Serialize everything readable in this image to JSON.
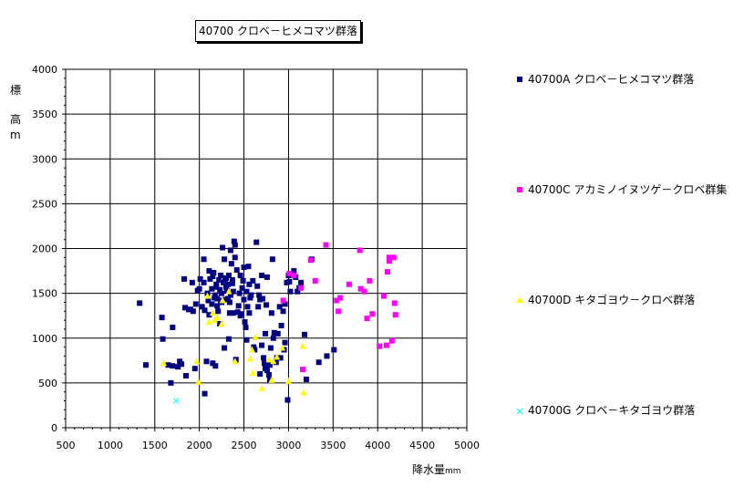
{
  "chart_data": {
    "type": "scatter",
    "title": "40700 クロベ－ヒメコマツ群落",
    "xlabel": "降水量",
    "xlabel_unit": "mm",
    "ylabel_chars": [
      "標",
      "高",
      "m"
    ],
    "xlim": [
      500,
      5000
    ],
    "ylim": [
      0,
      4000
    ],
    "xticks": [
      500,
      1000,
      1500,
      2000,
      2500,
      3000,
      3500,
      4000,
      4500,
      5000
    ],
    "yticks": [
      0,
      500,
      1000,
      1500,
      2000,
      2500,
      3000,
      3500,
      4000
    ],
    "grid": true,
    "legend_position": "right",
    "series": [
      {
        "name": "40700A クロベ－ヒメコマツ群落",
        "color": "#000080",
        "marker": "square",
        "points": [
          [
            1330,
            1390
          ],
          [
            1400,
            700
          ],
          [
            1580,
            1230
          ],
          [
            1590,
            990
          ],
          [
            1650,
            700
          ],
          [
            1680,
            500
          ],
          [
            1700,
            1120
          ],
          [
            1700,
            690
          ],
          [
            1760,
            680
          ],
          [
            1780,
            740
          ],
          [
            1800,
            710
          ],
          [
            1830,
            1660
          ],
          [
            1840,
            1340
          ],
          [
            1850,
            580
          ],
          [
            1880,
            1320
          ],
          [
            1900,
            1320
          ],
          [
            1920,
            1620
          ],
          [
            1930,
            1300
          ],
          [
            1950,
            660
          ],
          [
            1960,
            1380
          ],
          [
            1980,
            1530
          ],
          [
            2000,
            1550
          ],
          [
            2010,
            1660
          ],
          [
            2030,
            1350
          ],
          [
            2050,
            1620
          ],
          [
            2050,
            1880
          ],
          [
            2060,
            1310
          ],
          [
            2060,
            380
          ],
          [
            2080,
            740
          ],
          [
            2090,
            1500
          ],
          [
            2100,
            1420
          ],
          [
            2110,
            1750
          ],
          [
            2120,
            1660
          ],
          [
            2140,
            1550
          ],
          [
            2150,
            1690
          ],
          [
            2160,
            1730
          ],
          [
            2170,
            1450
          ],
          [
            2180,
            1480
          ],
          [
            2190,
            1600
          ],
          [
            2200,
            1440
          ],
          [
            2200,
            1360
          ],
          [
            2210,
            1300
          ],
          [
            2220,
            1650
          ],
          [
            2230,
            1540
          ],
          [
            2240,
            1700
          ],
          [
            2250,
            1500
          ],
          [
            2260,
            2010
          ],
          [
            2270,
            1620
          ],
          [
            2280,
            1880
          ],
          [
            2290,
            1430
          ],
          [
            2300,
            1570
          ],
          [
            2300,
            1670
          ],
          [
            2310,
            1530
          ],
          [
            2320,
            1600
          ],
          [
            2330,
            1700
          ],
          [
            2340,
            1400
          ],
          [
            2350,
            1480
          ],
          [
            2350,
            1980
          ],
          [
            2360,
            1830
          ],
          [
            2370,
            1650
          ],
          [
            2380,
            1520
          ],
          [
            2390,
            2080
          ],
          [
            2400,
            2040
          ],
          [
            2400,
            1900
          ],
          [
            2420,
            1760
          ],
          [
            2430,
            1290
          ],
          [
            2450,
            1500
          ],
          [
            2460,
            1700
          ],
          [
            2470,
            1270
          ],
          [
            2490,
            1640
          ],
          [
            2500,
            1790
          ],
          [
            2500,
            1430
          ],
          [
            2510,
            1180
          ],
          [
            2520,
            1120
          ],
          [
            2530,
            1520
          ],
          [
            2540,
            1350
          ],
          [
            2550,
            1800
          ],
          [
            2560,
            1600
          ],
          [
            2570,
            1450
          ],
          [
            2580,
            1480
          ],
          [
            2600,
            1640
          ],
          [
            2610,
            900
          ],
          [
            2620,
            870
          ],
          [
            2640,
            2070
          ],
          [
            2650,
            1580
          ],
          [
            2660,
            1350
          ],
          [
            2670,
            1480
          ],
          [
            2680,
            1430
          ],
          [
            2700,
            1700
          ],
          [
            2700,
            920
          ],
          [
            2710,
            1440
          ],
          [
            2720,
            780
          ],
          [
            2730,
            720
          ],
          [
            2740,
            660
          ],
          [
            2750,
            1370
          ],
          [
            2760,
            1680
          ],
          [
            2780,
            590
          ],
          [
            2790,
            700
          ],
          [
            2800,
            890
          ],
          [
            2810,
            1280
          ],
          [
            2820,
            1880
          ],
          [
            2840,
            1060
          ],
          [
            2860,
            730
          ],
          [
            2880,
            1050
          ],
          [
            2900,
            1350
          ],
          [
            2910,
            780
          ],
          [
            2920,
            1140
          ],
          [
            2940,
            1300
          ],
          [
            2950,
            870
          ],
          [
            2960,
            950
          ],
          [
            2980,
            1620
          ],
          [
            2990,
            310
          ],
          [
            3000,
            1700
          ],
          [
            3010,
            1630
          ],
          [
            3020,
            1520
          ],
          [
            3040,
            1720
          ],
          [
            3060,
            1750
          ],
          [
            3080,
            1680
          ],
          [
            3100,
            1520
          ],
          [
            3120,
            1560
          ],
          [
            3140,
            1620
          ],
          [
            3180,
            1040
          ],
          [
            3200,
            540
          ],
          [
            3260,
            1880
          ],
          [
            3340,
            730
          ],
          [
            3430,
            800
          ],
          [
            3510,
            870
          ],
          [
            2150,
            720
          ],
          [
            2180,
            690
          ],
          [
            2230,
            1160
          ],
          [
            2240,
            1420
          ],
          [
            2280,
            890
          ],
          [
            2330,
            990
          ],
          [
            2340,
            1280
          ],
          [
            2380,
            1280
          ],
          [
            2410,
            760
          ],
          [
            2460,
            1250
          ],
          [
            2530,
            980
          ],
          [
            2560,
            1280
          ],
          [
            2680,
            600
          ],
          [
            2740,
            1050
          ],
          [
            2760,
            640
          ],
          [
            2790,
            530
          ],
          [
            2830,
            1000
          ],
          [
            2870,
            780
          ],
          [
            2960,
            1380
          ],
          [
            2110,
            1260
          ],
          [
            2140,
            1380
          ],
          [
            2190,
            1570
          ],
          [
            2250,
            1400
          ],
          [
            2290,
            1650
          ],
          [
            2320,
            1440
          ],
          [
            2370,
            1610
          ],
          [
            2440,
            1360
          ],
          [
            2480,
            1560
          ]
        ]
      },
      {
        "name": "40700C アカミノイヌツゲ－クロベ群集",
        "color": "#ff00ff",
        "marker": "square",
        "points": [
          [
            2940,
            1420
          ],
          [
            3010,
            1720
          ],
          [
            3060,
            1700
          ],
          [
            3140,
            1560
          ],
          [
            3160,
            650
          ],
          [
            3250,
            1870
          ],
          [
            3300,
            1640
          ],
          [
            3420,
            2040
          ],
          [
            3540,
            1420
          ],
          [
            3560,
            1300
          ],
          [
            3580,
            1450
          ],
          [
            3680,
            1600
          ],
          [
            3800,
            1980
          ],
          [
            3810,
            1550
          ],
          [
            3850,
            1520
          ],
          [
            3880,
            1220
          ],
          [
            3910,
            1640
          ],
          [
            3940,
            1270
          ],
          [
            4020,
            910
          ],
          [
            4070,
            1470
          ],
          [
            4100,
            920
          ],
          [
            4110,
            1740
          ],
          [
            4130,
            1900
          ],
          [
            4130,
            1860
          ],
          [
            4160,
            970
          ],
          [
            4180,
            1900
          ],
          [
            4190,
            1390
          ],
          [
            4200,
            1260
          ]
        ]
      },
      {
        "name": "40700D キタゴヨウ－クロベ群落",
        "color": "#ffff00",
        "marker": "triangle",
        "points": [
          [
            1600,
            720
          ],
          [
            1970,
            740
          ],
          [
            1990,
            510
          ],
          [
            2090,
            1470
          ],
          [
            2110,
            1180
          ],
          [
            2150,
            1280
          ],
          [
            2170,
            1200
          ],
          [
            2200,
            1230
          ],
          [
            2250,
            1160
          ],
          [
            2260,
            1420
          ],
          [
            2330,
            1520
          ],
          [
            2400,
            740
          ],
          [
            2570,
            770
          ],
          [
            2590,
            870
          ],
          [
            2600,
            610
          ],
          [
            2700,
            440
          ],
          [
            2780,
            760
          ],
          [
            2810,
            530
          ],
          [
            2830,
            740
          ],
          [
            2870,
            790
          ],
          [
            2930,
            890
          ],
          [
            3000,
            520
          ],
          [
            3160,
            910
          ],
          [
            3170,
            390
          ],
          [
            2630,
            1010
          ]
        ]
      },
      {
        "name": "40700G クロベ－キタゴヨウ群落",
        "color": "#00ffff",
        "marker": "x",
        "points": [
          [
            1740,
            300
          ]
        ]
      }
    ]
  }
}
